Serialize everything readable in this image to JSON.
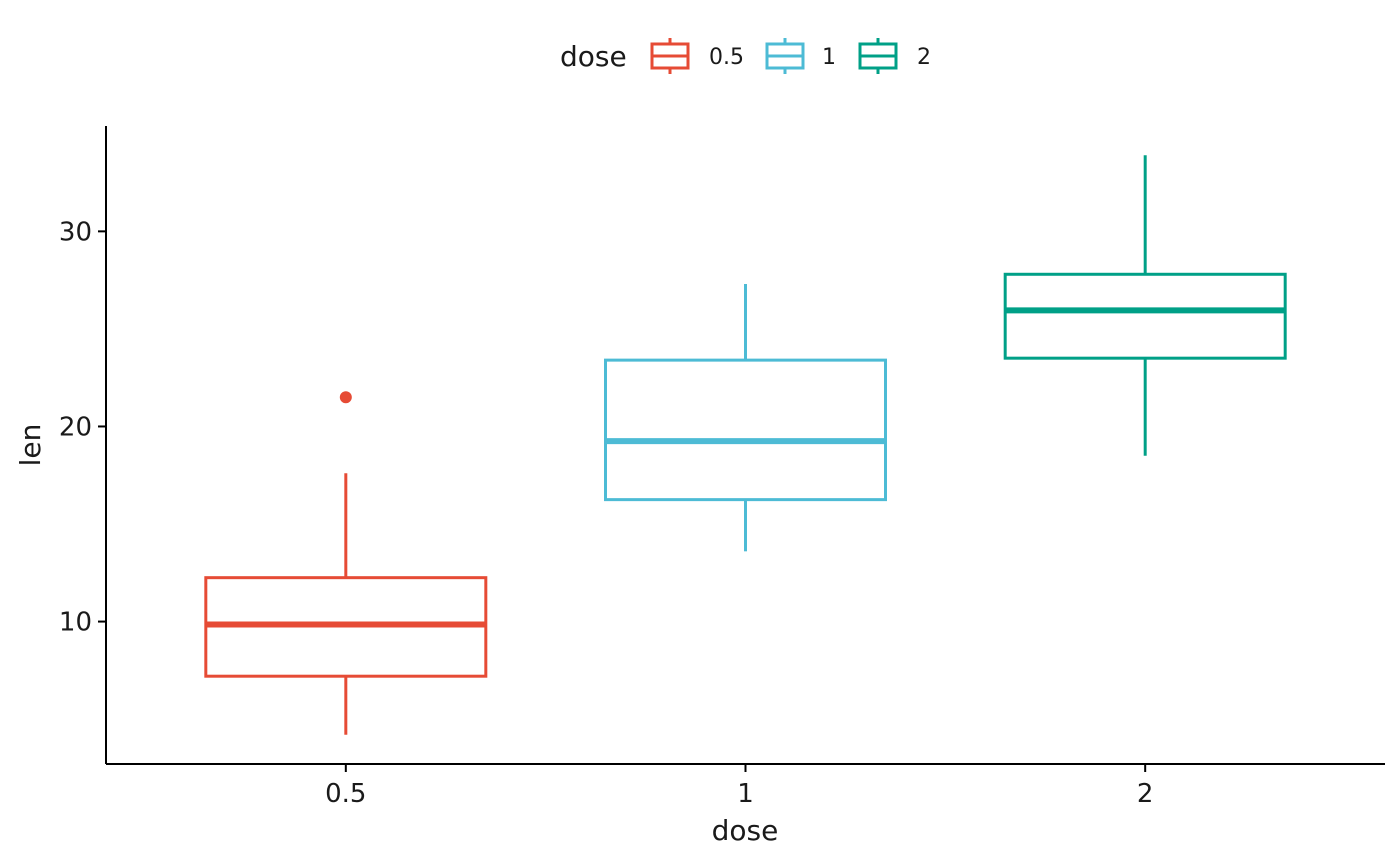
{
  "chart_data": {
    "type": "box",
    "xlabel": "dose",
    "ylabel": "len",
    "categories": [
      "0.5",
      "1",
      "2"
    ],
    "ylim": [
      2.7,
      35.4
    ],
    "yticks": [
      10,
      20,
      30
    ],
    "grid": false,
    "legend": {
      "title": "dose",
      "position": "top",
      "entries": [
        "0.5",
        "1",
        "2"
      ]
    },
    "series": [
      {
        "category": "0.5",
        "color": "#E64B35",
        "whisker_low": 4.2,
        "q1": 7.2,
        "median": 9.85,
        "q3": 12.25,
        "whisker_high": 17.6,
        "outliers": [
          21.5
        ]
      },
      {
        "category": "1",
        "color": "#4DBBD5",
        "whisker_low": 13.6,
        "q1": 16.25,
        "median": 19.25,
        "q3": 23.4,
        "whisker_high": 27.3,
        "outliers": []
      },
      {
        "category": "2",
        "color": "#00A087",
        "whisker_low": 18.5,
        "q1": 23.5,
        "median": 25.95,
        "q3": 27.8,
        "whisker_high": 33.9,
        "outliers": []
      }
    ]
  }
}
